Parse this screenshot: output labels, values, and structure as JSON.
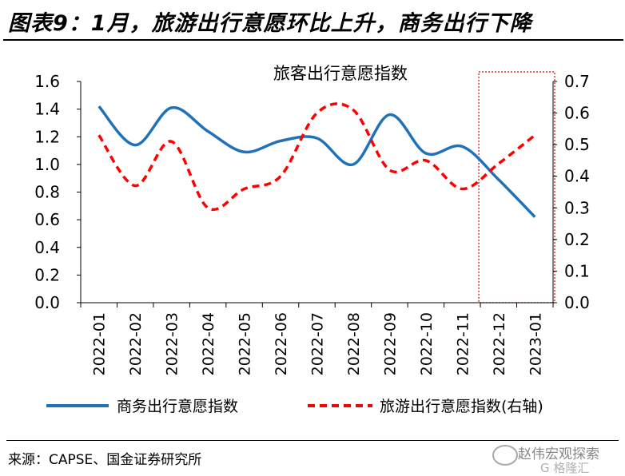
{
  "header": {
    "title": "图表9：1月，旅游出行意愿环比上升，商务出行下降"
  },
  "chart_data": {
    "type": "line",
    "title": "旅客出行意愿指数",
    "categories": [
      "2022-01",
      "2022-02",
      "2022-03",
      "2022-04",
      "2022-05",
      "2022-06",
      "2022-07",
      "2022-08",
      "2022-09",
      "2022-10",
      "2022-11",
      "2022-12",
      "2023-01"
    ],
    "y_left": {
      "range": [
        0,
        1.6
      ],
      "ticks": [
        "0.0",
        "0.2",
        "0.4",
        "0.6",
        "0.8",
        "1.0",
        "1.2",
        "1.4",
        "1.6"
      ]
    },
    "y_right": {
      "range": [
        0,
        0.7
      ],
      "ticks": [
        "0.0",
        "0.1",
        "0.2",
        "0.3",
        "0.4",
        "0.5",
        "0.6",
        "0.7"
      ]
    },
    "series": [
      {
        "name": "商务出行意愿指数",
        "axis": "left",
        "color": "#1f72b8",
        "style": "solid",
        "values": [
          1.42,
          1.14,
          1.41,
          1.24,
          1.09,
          1.17,
          1.19,
          1.0,
          1.36,
          1.08,
          1.13,
          0.89,
          0.62
        ]
      },
      {
        "name": "旅游出行意愿指数(右轴)",
        "axis": "right",
        "color": "#ff0000",
        "style": "dashed",
        "values": [
          0.53,
          0.37,
          0.51,
          0.3,
          0.36,
          0.4,
          0.6,
          0.61,
          0.42,
          0.45,
          0.36,
          0.44,
          0.53
        ]
      }
    ],
    "highlight": {
      "from": "2022-12",
      "to": "2023-01",
      "color": "#c00000"
    },
    "legend": "bottom",
    "grid": false
  },
  "footer": {
    "source": "来源：CAPSE、国金证券研究所"
  },
  "watermark": {
    "text": "赵伟宏观探索",
    "sub": "G 格隆汇"
  }
}
